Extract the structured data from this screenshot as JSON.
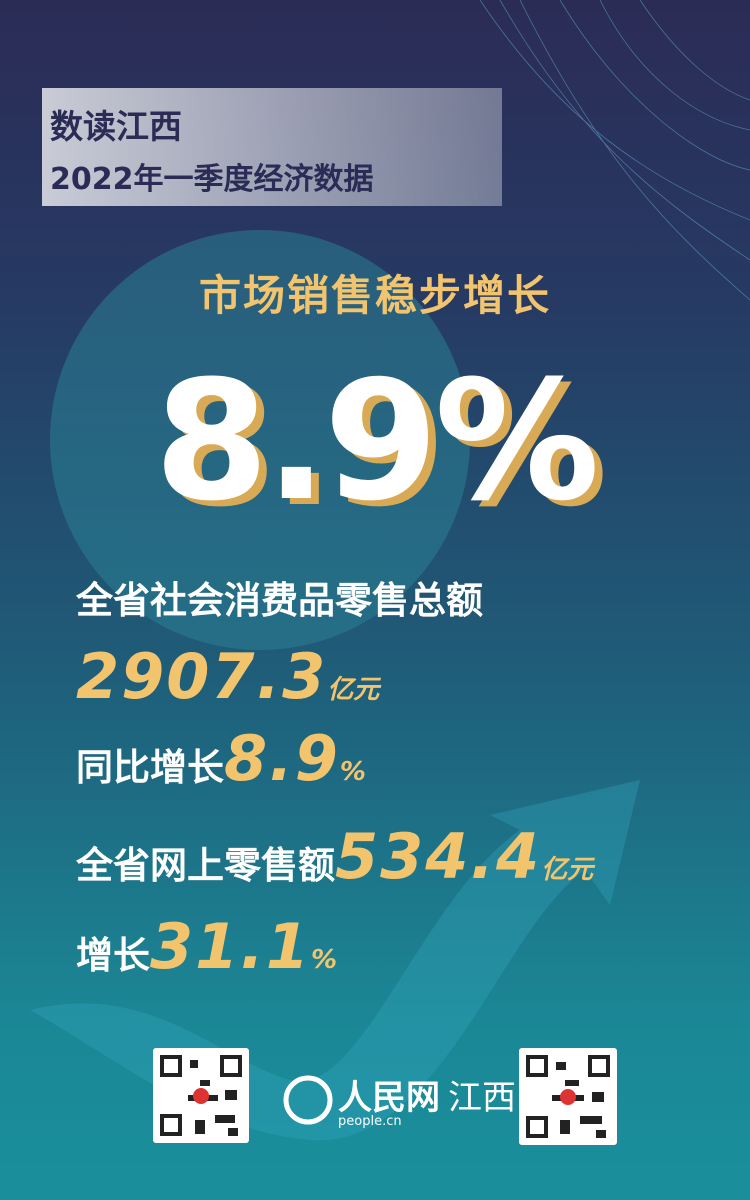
{
  "header": {
    "title": "数读江西",
    "subtitle": "2022年一季度经济数据"
  },
  "headline": "市场销售稳步增长",
  "big_figure": "8.9%",
  "items": [
    {
      "label": "全省社会消费品零售总额",
      "value": "2907.3",
      "unit": "亿元"
    },
    {
      "label": "同比增长",
      "value": "8.9",
      "unit": "%"
    },
    {
      "label": "全省网上零售额",
      "value": "534.4",
      "unit": "亿元"
    },
    {
      "label": "增长",
      "value": "31.1",
      "unit": "%"
    }
  ],
  "footer": {
    "logo": "人民网",
    "province": "江西",
    "domain": "people.cn"
  }
}
